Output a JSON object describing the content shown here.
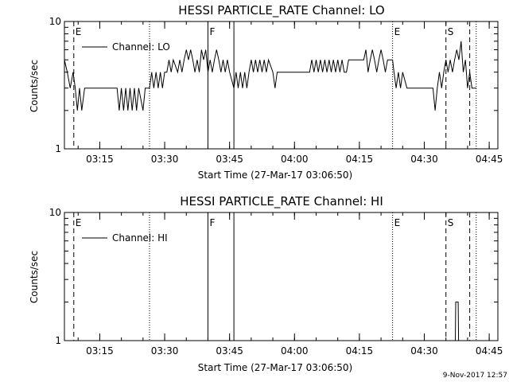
{
  "chart_data": [
    {
      "type": "line",
      "title": "HESSI PARTICLE_RATE Channel: LO",
      "xlabel": "Start Time (27-Mar-17 03:06:50)",
      "ylabel": "Counts/sec",
      "y_scale": "log",
      "ylim": [
        1,
        10
      ],
      "y_tick_labels": [
        "1",
        "10"
      ],
      "xlim": [
        "03:06:50",
        "04:47:00"
      ],
      "x_tick_labels": [
        "03:15",
        "03:30",
        "03:45",
        "04:00",
        "04:15",
        "04:30",
        "04:45"
      ],
      "legend": {
        "position": "top-left",
        "entries": [
          "Channel: LO"
        ]
      },
      "grid": false,
      "markers": [
        {
          "label": "E",
          "time": "03:09:00",
          "style": "dashed"
        },
        {
          "label": "",
          "time": "03:26:30",
          "style": "dotted"
        },
        {
          "label": "F",
          "time": "03:40:00",
          "style": "solid"
        },
        {
          "label": "",
          "time": "03:46:00",
          "style": "solid"
        },
        {
          "label": "E",
          "time": "04:22:40",
          "style": "dotted"
        },
        {
          "label": "S",
          "time": "04:35:00",
          "style": "dashed"
        },
        {
          "label": "",
          "time": "04:40:30",
          "style": "dashed"
        },
        {
          "label": "",
          "time": "04:42:00",
          "style": "dotted"
        }
      ],
      "series": [
        {
          "name": "Channel: LO",
          "points": [
            [
              "03:06:50",
              5
            ],
            [
              "03:07:30",
              4
            ],
            [
              "03:08:10",
              3
            ],
            [
              "03:08:50",
              4
            ],
            [
              "03:09:20",
              3
            ],
            [
              "03:09:50",
              2
            ],
            [
              "03:10:20",
              3
            ],
            [
              "03:10:50",
              2
            ],
            [
              "03:11:30",
              3
            ],
            [
              "03:19:00",
              3
            ],
            [
              "03:19:30",
              2
            ],
            [
              "03:20:00",
              3
            ],
            [
              "03:20:30",
              2
            ],
            [
              "03:21:00",
              3
            ],
            [
              "03:21:30",
              2
            ],
            [
              "03:22:00",
              3
            ],
            [
              "03:22:30",
              2
            ],
            [
              "03:23:00",
              3
            ],
            [
              "03:23:30",
              2
            ],
            [
              "03:24:00",
              3
            ],
            [
              "03:25:00",
              2
            ],
            [
              "03:25:30",
              3
            ],
            [
              "03:26:30",
              3
            ],
            [
              "03:27:00",
              4
            ],
            [
              "03:27:30",
              3
            ],
            [
              "03:28:00",
              4
            ],
            [
              "03:28:30",
              3
            ],
            [
              "03:29:00",
              4
            ],
            [
              "03:29:30",
              3
            ],
            [
              "03:30:00",
              4
            ],
            [
              "03:30:30",
              4
            ],
            [
              "03:31:00",
              5
            ],
            [
              "03:31:30",
              4
            ],
            [
              "03:32:00",
              5
            ],
            [
              "03:33:00",
              4
            ],
            [
              "03:33:30",
              5
            ],
            [
              "03:34:00",
              4
            ],
            [
              "03:34:30",
              5
            ],
            [
              "03:35:00",
              6
            ],
            [
              "03:35:30",
              5
            ],
            [
              "03:36:00",
              6
            ],
            [
              "03:36:30",
              5
            ],
            [
              "03:37:00",
              4
            ],
            [
              "03:37:30",
              5
            ],
            [
              "03:38:00",
              4
            ],
            [
              "03:38:30",
              6
            ],
            [
              "03:39:00",
              5
            ],
            [
              "03:39:30",
              6
            ],
            [
              "03:40:00",
              4
            ],
            [
              "03:40:30",
              5
            ],
            [
              "03:41:00",
              4
            ],
            [
              "03:41:30",
              5
            ],
            [
              "03:42:00",
              6
            ],
            [
              "03:42:30",
              5
            ],
            [
              "03:43:00",
              4
            ],
            [
              "03:43:30",
              5
            ],
            [
              "03:44:00",
              4
            ],
            [
              "03:44:30",
              5
            ],
            [
              "03:45:00",
              4
            ],
            [
              "03:46:00",
              3
            ],
            [
              "03:46:30",
              4
            ],
            [
              "03:47:00",
              3
            ],
            [
              "03:47:30",
              4
            ],
            [
              "03:48:00",
              3
            ],
            [
              "03:48:30",
              4
            ],
            [
              "03:49:00",
              3
            ],
            [
              "03:49:30",
              4
            ],
            [
              "03:50:00",
              5
            ],
            [
              "03:50:30",
              4
            ],
            [
              "03:51:00",
              5
            ],
            [
              "03:51:30",
              4
            ],
            [
              "03:52:00",
              5
            ],
            [
              "03:52:30",
              4
            ],
            [
              "03:53:00",
              5
            ],
            [
              "03:53:30",
              4
            ],
            [
              "03:54:00",
              5
            ],
            [
              "03:55:00",
              4
            ],
            [
              "03:55:30",
              3
            ],
            [
              "03:56:00",
              4
            ],
            [
              "04:03:30",
              4
            ],
            [
              "04:04:00",
              5
            ],
            [
              "04:04:30",
              4
            ],
            [
              "04:05:00",
              5
            ],
            [
              "04:05:30",
              4
            ],
            [
              "04:06:00",
              5
            ],
            [
              "04:06:30",
              4
            ],
            [
              "04:07:00",
              5
            ],
            [
              "04:07:30",
              4
            ],
            [
              "04:08:00",
              5
            ],
            [
              "04:08:30",
              4
            ],
            [
              "04:09:00",
              5
            ],
            [
              "04:09:30",
              4
            ],
            [
              "04:10:00",
              5
            ],
            [
              "04:10:30",
              4
            ],
            [
              "04:11:00",
              5
            ],
            [
              "04:11:30",
              4
            ],
            [
              "04:12:00",
              4
            ],
            [
              "04:12:30",
              5
            ],
            [
              "04:16:00",
              5
            ],
            [
              "04:16:30",
              6
            ],
            [
              "04:17:00",
              4
            ],
            [
              "04:17:30",
              5
            ],
            [
              "04:18:00",
              6
            ],
            [
              "04:18:30",
              5
            ],
            [
              "04:19:00",
              4
            ],
            [
              "04:19:30",
              5
            ],
            [
              "04:20:00",
              6
            ],
            [
              "04:20:30",
              5
            ],
            [
              "04:21:00",
              4
            ],
            [
              "04:21:30",
              5
            ],
            [
              "04:22:00",
              5
            ],
            [
              "04:22:40",
              5
            ],
            [
              "04:23:00",
              4
            ],
            [
              "04:23:30",
              3
            ],
            [
              "04:24:00",
              4
            ],
            [
              "04:24:30",
              3
            ],
            [
              "04:25:00",
              4
            ],
            [
              "04:26:00",
              3
            ],
            [
              "04:26:30",
              3
            ],
            [
              "04:32:00",
              3
            ],
            [
              "04:32:30",
              2
            ],
            [
              "04:33:00",
              3
            ],
            [
              "04:33:30",
              4
            ],
            [
              "04:34:00",
              3
            ],
            [
              "04:34:30",
              4
            ],
            [
              "04:35:00",
              5
            ],
            [
              "04:35:30",
              4
            ],
            [
              "04:36:00",
              5
            ],
            [
              "04:36:30",
              4
            ],
            [
              "04:37:00",
              5
            ],
            [
              "04:37:30",
              6
            ],
            [
              "04:38:00",
              5
            ],
            [
              "04:38:30",
              7
            ],
            [
              "04:39:00",
              4
            ],
            [
              "04:39:30",
              5
            ],
            [
              "04:40:00",
              3
            ],
            [
              "04:40:30",
              4
            ],
            [
              "04:41:00",
              3
            ],
            [
              "04:42:00",
              3
            ]
          ]
        }
      ]
    },
    {
      "type": "line",
      "title": "HESSI PARTICLE_RATE Channel: HI",
      "xlabel": "Start Time (27-Mar-17 03:06:50)",
      "ylabel": "Counts/sec",
      "y_scale": "log",
      "ylim": [
        1,
        10
      ],
      "y_tick_labels": [
        "1",
        "10"
      ],
      "xlim": [
        "03:06:50",
        "04:47:00"
      ],
      "x_tick_labels": [
        "03:15",
        "03:30",
        "03:45",
        "04:00",
        "04:15",
        "04:30",
        "04:45"
      ],
      "legend": {
        "position": "top-left",
        "entries": [
          "Channel: HI"
        ]
      },
      "grid": false,
      "markers": [
        {
          "label": "E",
          "time": "03:09:00",
          "style": "dashed"
        },
        {
          "label": "",
          "time": "03:26:30",
          "style": "dotted"
        },
        {
          "label": "F",
          "time": "03:40:00",
          "style": "solid"
        },
        {
          "label": "",
          "time": "03:46:00",
          "style": "solid"
        },
        {
          "label": "E",
          "time": "04:22:40",
          "style": "dotted"
        },
        {
          "label": "S",
          "time": "04:35:00",
          "style": "dashed"
        },
        {
          "label": "",
          "time": "04:40:30",
          "style": "dashed"
        },
        {
          "label": "",
          "time": "04:42:00",
          "style": "dotted"
        }
      ],
      "series": [
        {
          "name": "Channel: HI",
          "points": [
            [
              "04:37:10",
              1
            ],
            [
              "04:37:15",
              2
            ],
            [
              "04:37:50",
              2
            ],
            [
              "04:37:55",
              1
            ]
          ]
        }
      ]
    }
  ],
  "footer": {
    "timestamp": "9-Nov-2017 12:57"
  }
}
